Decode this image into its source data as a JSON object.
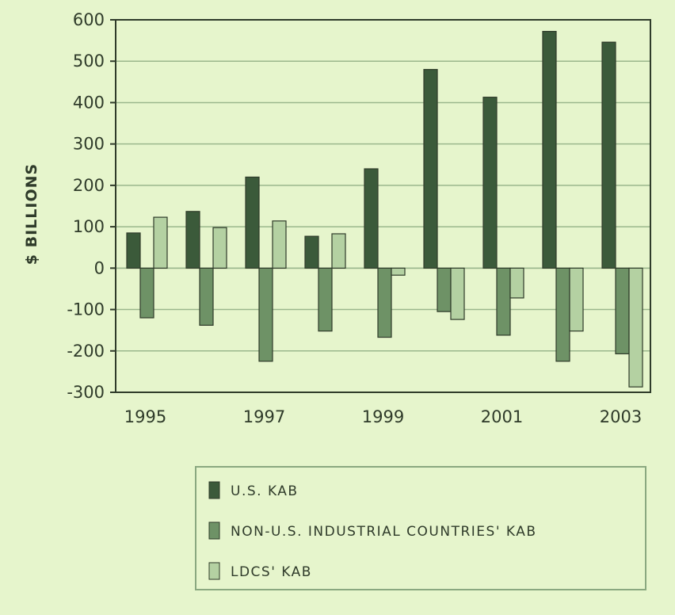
{
  "chart_data": {
    "type": "bar",
    "title": "",
    "xlabel": "",
    "ylabel": "$ BILLIONS",
    "ylim": [
      -300,
      600
    ],
    "yticks": [
      600,
      500,
      400,
      300,
      200,
      100,
      0,
      -100,
      -200,
      -300
    ],
    "ytick_labels": [
      "600",
      "500",
      "400",
      "300",
      "200",
      "100",
      "0",
      "-100",
      "-200",
      "-300"
    ],
    "categories": [
      "1995",
      "1996",
      "1997",
      "1998",
      "1999",
      "2000",
      "2001",
      "2002",
      "2003"
    ],
    "xtick_labels": [
      "1995",
      "1997",
      "1999",
      "2001",
      "2003"
    ],
    "grid": true,
    "legend_position": "bottom",
    "series": [
      {
        "name": "U.S. KAB",
        "color": "#3b5a3a",
        "values": [
          85,
          137,
          220,
          77,
          240,
          480,
          413,
          572,
          546
        ]
      },
      {
        "name": "NON-U.S. INDUSTRIAL COUNTRIES' KAB",
        "color": "#6e9266",
        "values": [
          -120,
          -138,
          -225,
          -152,
          -167,
          -105,
          -162,
          -225,
          -207
        ]
      },
      {
        "name": "LDCS' KAB",
        "color": "#b4d1a2",
        "values": [
          123,
          98,
          114,
          83,
          -17,
          -124,
          -72,
          -152,
          -287
        ]
      }
    ]
  }
}
